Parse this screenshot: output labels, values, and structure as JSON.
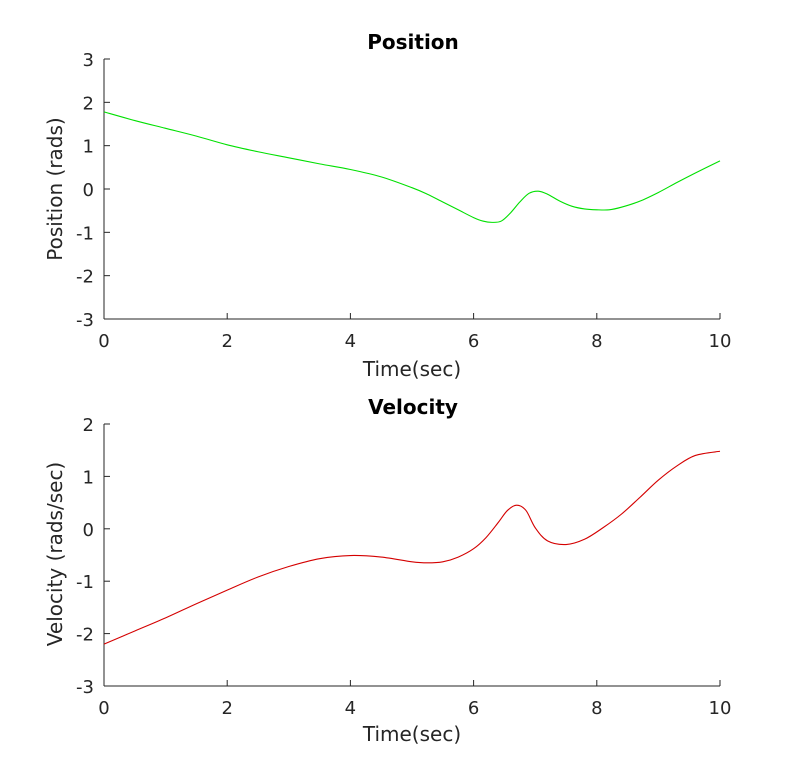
{
  "chart_data": [
    {
      "type": "line",
      "title": "Position",
      "xlabel": "Time(sec)",
      "ylabel": "Position (rads)",
      "xlim": [
        0,
        10
      ],
      "ylim": [
        -3,
        3
      ],
      "xticks": [
        "0",
        "2",
        "4",
        "6",
        "8",
        "10"
      ],
      "yticks": [
        "-3",
        "-2",
        "-1",
        "0",
        "1",
        "2",
        "3"
      ],
      "grid": false,
      "series": [
        {
          "color": "#00e000",
          "x": [
            0,
            0.5,
            1,
            1.5,
            2,
            2.5,
            3,
            3.5,
            4,
            4.5,
            5,
            5.25,
            5.5,
            5.75,
            6,
            6.15,
            6.3,
            6.45,
            6.6,
            6.75,
            6.9,
            7.05,
            7.2,
            7.4,
            7.6,
            7.8,
            8.0,
            8.2,
            8.4,
            8.7,
            9.0,
            9.3,
            9.6,
            10
          ],
          "values": [
            1.78,
            1.58,
            1.4,
            1.22,
            1.02,
            0.86,
            0.72,
            0.58,
            0.45,
            0.28,
            0.03,
            -0.12,
            -0.3,
            -0.48,
            -0.66,
            -0.74,
            -0.77,
            -0.74,
            -0.55,
            -0.3,
            -0.1,
            -0.05,
            -0.12,
            -0.28,
            -0.4,
            -0.46,
            -0.48,
            -0.48,
            -0.42,
            -0.28,
            -0.08,
            0.15,
            0.37,
            0.65
          ]
        }
      ]
    },
    {
      "type": "line",
      "title": "Velocity",
      "xlabel": "Time(sec)",
      "ylabel": "Velocity (rads/sec)",
      "xlim": [
        0,
        10
      ],
      "ylim": [
        -3,
        2
      ],
      "xticks": [
        "0",
        "2",
        "4",
        "6",
        "8",
        "10"
      ],
      "yticks": [
        "-3",
        "-2",
        "-1",
        "0",
        "1",
        "2"
      ],
      "grid": false,
      "series": [
        {
          "color": "#d40000",
          "x": [
            0,
            0.5,
            1,
            1.5,
            2,
            2.5,
            3,
            3.5,
            4,
            4.5,
            5,
            5.25,
            5.5,
            5.75,
            6,
            6.2,
            6.4,
            6.55,
            6.7,
            6.85,
            7.0,
            7.2,
            7.5,
            7.8,
            8.1,
            8.4,
            8.7,
            9.0,
            9.3,
            9.6,
            10
          ],
          "values": [
            -2.2,
            -1.95,
            -1.7,
            -1.43,
            -1.17,
            -0.92,
            -0.72,
            -0.57,
            -0.51,
            -0.54,
            -0.63,
            -0.65,
            -0.63,
            -0.54,
            -0.38,
            -0.17,
            0.12,
            0.35,
            0.45,
            0.35,
            0.02,
            -0.23,
            -0.3,
            -0.2,
            0.02,
            0.28,
            0.6,
            0.93,
            1.2,
            1.4,
            1.48
          ]
        }
      ]
    }
  ]
}
